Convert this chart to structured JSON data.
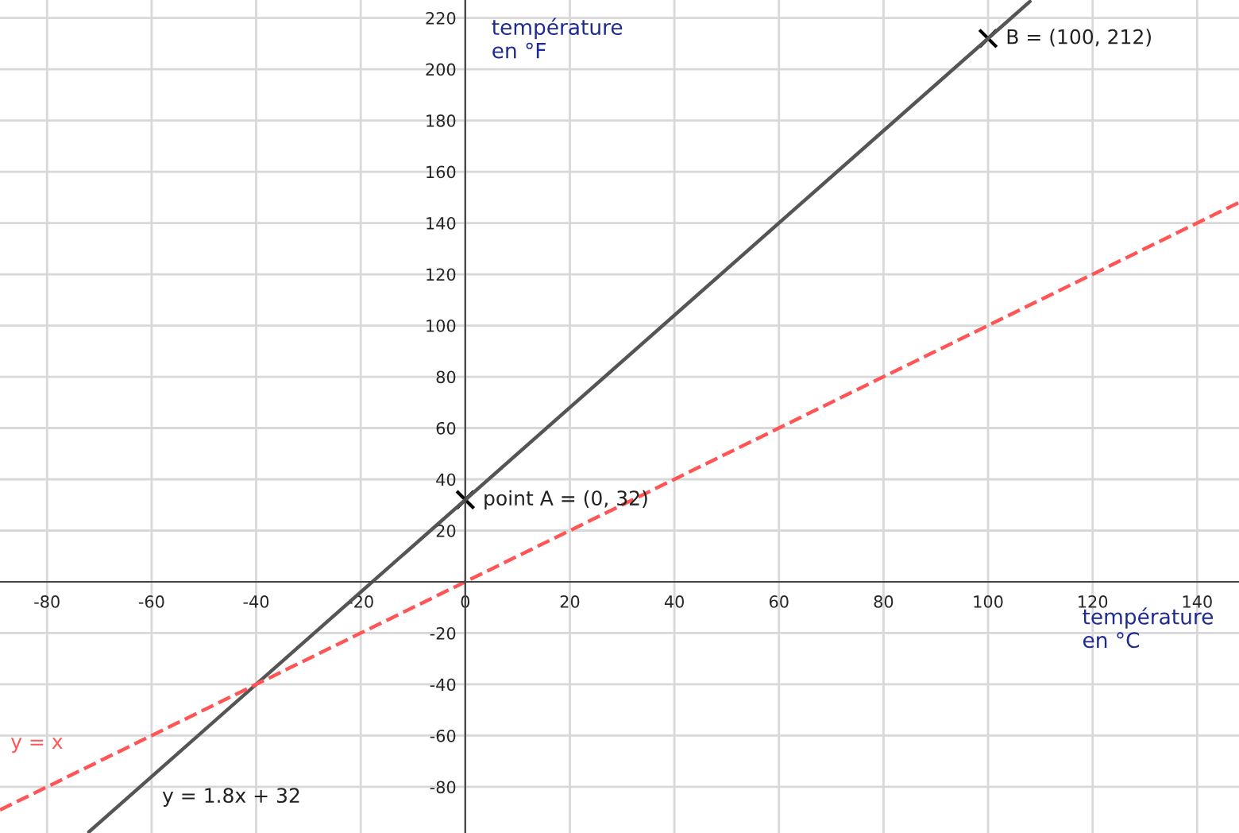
{
  "chart_data": {
    "type": "line",
    "xlabel": "température\nen °C",
    "ylabel": "température\nen °F",
    "xlim": [
      -89,
      148
    ],
    "ylim": [
      -98,
      227
    ],
    "xticks": [
      -80,
      -60,
      -40,
      -20,
      0,
      20,
      40,
      60,
      80,
      100,
      120,
      140
    ],
    "yticks": [
      -80,
      -60,
      -40,
      -20,
      20,
      40,
      60,
      80,
      100,
      120,
      140,
      160,
      180,
      200,
      220
    ],
    "grid": true,
    "legend": false,
    "series": [
      {
        "name": "y = 1.8x + 32",
        "color": "#555555",
        "line_style": "solid",
        "x": [
          -72,
          108
        ],
        "values": [
          -97.6,
          226.4
        ]
      },
      {
        "name": "y = x",
        "color": "#ff5555",
        "line_style": "dashed",
        "x": [
          -89,
          148
        ],
        "values": [
          -89,
          148
        ]
      },
      {
        "type": "scatter",
        "marker": "cross",
        "color": "#000000",
        "x": [
          0,
          100
        ],
        "values": [
          32,
          212
        ]
      }
    ],
    "annotations": [
      {
        "text": "point A = (0, 32)",
        "x": 0,
        "y": 32
      },
      {
        "text": "B = (100, 212)",
        "x": 100,
        "y": 212
      }
    ]
  }
}
